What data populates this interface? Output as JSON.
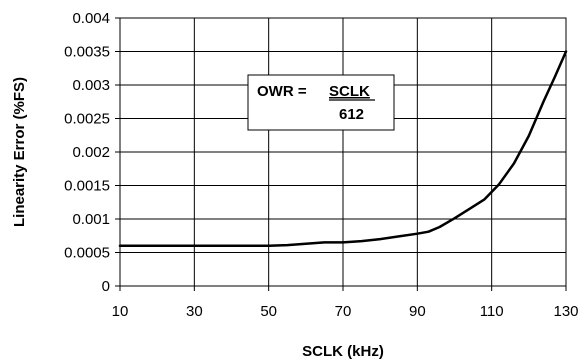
{
  "chart_data": {
    "type": "line",
    "title": "",
    "xlabel": "SCLK (kHz)",
    "ylabel": "Linearity Error (%FS)",
    "xlim": [
      10,
      130
    ],
    "ylim": [
      0,
      0.004
    ],
    "x_ticks": [
      10,
      30,
      50,
      70,
      90,
      110,
      130
    ],
    "y_ticks": [
      0,
      0.0005,
      0.001,
      0.0015,
      0.002,
      0.0025,
      0.003,
      0.0035,
      0.004
    ],
    "x_tick_labels": [
      "10",
      "30",
      "50",
      "70",
      "90",
      "110",
      "130"
    ],
    "y_tick_labels": [
      "0",
      "0.0005",
      "0.001",
      "0.0015",
      "0.002",
      "0.0025",
      "0.003",
      "0.0035",
      "0.004"
    ],
    "grid": true,
    "legend": "none",
    "series": [
      {
        "color": "#000000",
        "x": [
          10,
          20,
          30,
          40,
          50,
          55,
          60,
          65,
          70,
          75,
          80,
          85,
          90,
          93,
          96,
          100,
          104,
          108,
          112,
          116,
          120,
          124,
          127,
          130
        ],
        "y": [
          0.0006,
          0.0006,
          0.0006,
          0.0006,
          0.0006,
          0.00061,
          0.00063,
          0.00065,
          0.00065,
          0.00067,
          0.0007,
          0.00074,
          0.00078,
          0.00081,
          0.00088,
          0.00101,
          0.00115,
          0.00129,
          0.00152,
          0.00183,
          0.00224,
          0.00276,
          0.00312,
          0.0035
        ]
      }
    ],
    "annotation": {
      "lhs": "OWR = ",
      "numerator": "SCLK",
      "denominator": "612"
    }
  }
}
